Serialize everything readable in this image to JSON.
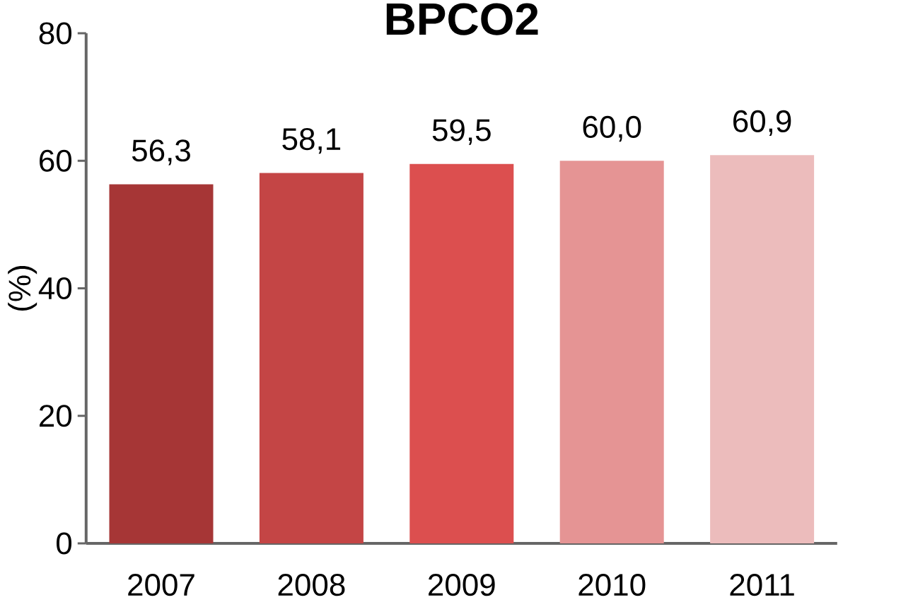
{
  "chart_data": {
    "type": "bar",
    "title": "BPCO2",
    "ylabel": "(%)",
    "categories": [
      "2007",
      "2008",
      "2009",
      "2010",
      "2011"
    ],
    "values": [
      56.3,
      58.1,
      59.5,
      60.0,
      60.9
    ],
    "colors": [
      "#a63636",
      "#c44545",
      "#dc4f4f",
      "#e59494",
      "#ecbcbc"
    ],
    "value_labels": [
      "56,3",
      "58,1",
      "59,5",
      "60,0",
      "60,9"
    ],
    "ylim": [
      0,
      80
    ],
    "yticks": [
      0,
      20,
      40,
      60,
      80
    ],
    "grid": false
  }
}
